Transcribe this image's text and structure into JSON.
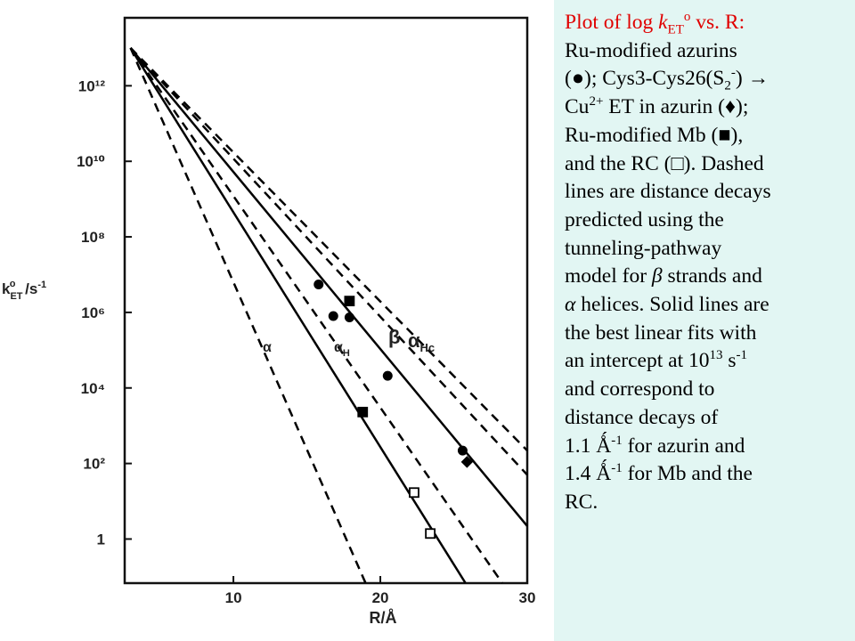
{
  "chart_data": {
    "type": "line",
    "log_y": true,
    "xlabel": [
      "R/",
      "Å"
    ],
    "ylabel": [
      "k",
      "ET",
      "o",
      " /s",
      "-1"
    ],
    "xlim": [
      2.6,
      30
    ],
    "xticks": [
      10,
      20,
      30
    ],
    "ylim": [
      0.068,
      63000000000000
    ],
    "yticks": [
      1,
      {
        "value": 100,
        "label": "10²"
      },
      {
        "value": 10000,
        "label": "10⁴"
      },
      {
        "value": 1000000,
        "label": "10⁶"
      },
      {
        "value": 100000000,
        "label": "10⁸"
      },
      {
        "value": 10000000000,
        "label": "10¹⁰"
      },
      {
        "value": 1000000000000,
        "label": "10¹²"
      }
    ],
    "series": [
      {
        "kind": "line",
        "dash": false,
        "color": "#000000",
        "x": [
          3,
          30
        ],
        "values": [
          10000000000000,
          2.2
        ]
      },
      {
        "kind": "line",
        "dash": false,
        "color": "#000000",
        "x": [
          3,
          25.8
        ],
        "values": [
          10000000000000,
          0.068
        ]
      },
      {
        "kind": "line",
        "dash": true,
        "color": "#000000",
        "x": [
          3,
          30
        ],
        "values": [
          10000000000000,
          220
        ]
      },
      {
        "kind": "line",
        "dash": true,
        "color": "#000000",
        "x": [
          3,
          30
        ],
        "values": [
          10000000000000,
          50
        ]
      },
      {
        "kind": "line",
        "dash": true,
        "color": "#000000",
        "x": [
          3,
          28.3
        ],
        "values": [
          10000000000000,
          0.068
        ]
      },
      {
        "kind": "line",
        "dash": true,
        "color": "#000000",
        "x": [
          3,
          19
        ],
        "values": [
          10000000000000,
          0.068
        ]
      },
      {
        "kind": "scatter",
        "marker": "circle",
        "color": "#000000",
        "x": [
          15.8,
          16.8,
          17.9,
          20.5,
          25.6
        ],
        "values": [
          5500000,
          800000,
          740000,
          21000,
          220
        ]
      },
      {
        "kind": "scatter",
        "marker": "square",
        "color": "#000000",
        "x": [
          17.9,
          18.8
        ],
        "values": [
          2000000,
          2300
        ]
      },
      {
        "kind": "scatter",
        "marker": "diamond",
        "color": "#000000",
        "x": [
          25.9
        ],
        "values": [
          110
        ]
      },
      {
        "kind": "scatter",
        "marker": "open-square",
        "color": "#000000",
        "x": [
          22.3,
          23.4
        ],
        "values": [
          17,
          1.4
        ]
      }
    ],
    "annotations": [
      {
        "text": "α"
      },
      {
        "text": "α",
        "sub": "H"
      },
      {
        "text": "β"
      },
      {
        "text": "α",
        "sub": "Hc"
      }
    ]
  },
  "caption": {
    "lines": [
      [
        "Plot of log ",
        "k",
        "ET",
        "o",
        " vs. R:"
      ],
      [
        "Ru-modified azurins"
      ],
      [
        "(●); Cys3-Cys26(S",
        "2",
        "-",
        ") →"
      ],
      [
        "Cu",
        "2+",
        " ET in azurin (♦);"
      ],
      [
        "Ru-modified Mb (■),"
      ],
      [
        "and the RC (□). Dashed"
      ],
      [
        "lines are distance decays"
      ],
      [
        "predicted using the"
      ],
      [
        "tunneling-pathway"
      ],
      [
        "model for ",
        "β",
        " strands and"
      ],
      [
        "α",
        " helices. Solid lines are"
      ],
      [
        "the best linear fits with"
      ],
      [
        "an intercept at 10",
        "13",
        " s",
        "-1"
      ],
      [
        "and correspond to"
      ],
      [
        "distance decays of"
      ],
      [
        "1.1 Ǻ",
        "-1",
        " for azurin and"
      ],
      [
        "1.4 Ǻ",
        "-1",
        " for Mb and the"
      ],
      [
        "RC."
      ]
    ]
  }
}
